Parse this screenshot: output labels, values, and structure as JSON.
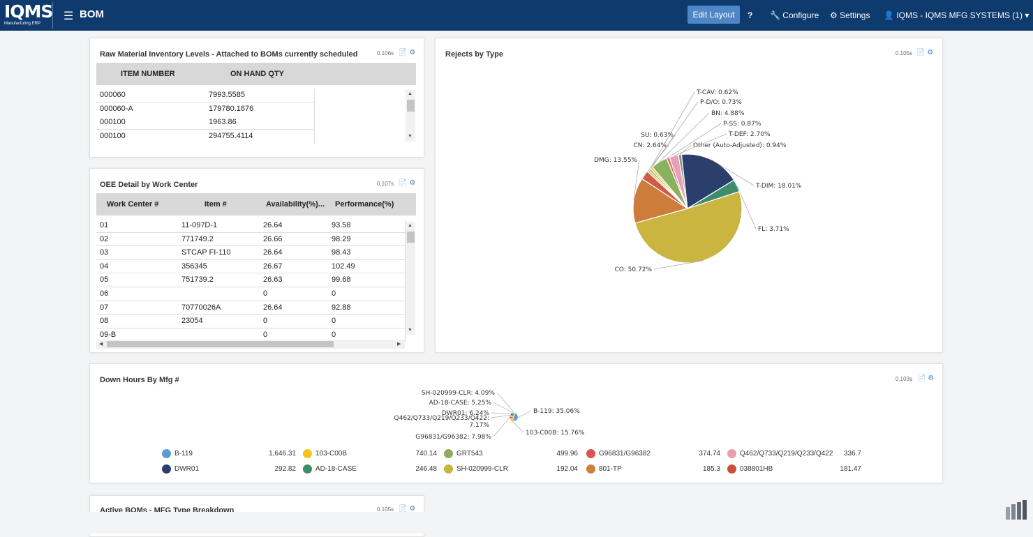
{
  "header": {
    "logo_main": "IQMS",
    "logo_sub": "Manufacturing ERP",
    "menu_icon": "hamburger-icon",
    "title": "BOM",
    "edit_layout": "Edit Layout",
    "help": "?",
    "configure": "Configure",
    "settings": "Settings",
    "user": "IQMS - IQMS MFG SYSTEMS (1)"
  },
  "raw_material": {
    "title": "Raw Material Inventory Levels - Attached to BOMs currently scheduled",
    "time": "0.106s",
    "columns": [
      "ITEM NUMBER",
      "ON HAND QTY"
    ],
    "rows": [
      [
        "000060",
        "7993.5585"
      ],
      [
        "000060-A",
        "179780.1676"
      ],
      [
        "000100",
        "1963.86"
      ],
      [
        "000100",
        "294755.4114"
      ]
    ]
  },
  "oee": {
    "title": "OEE Detail by Work Center",
    "time": "0.107s",
    "columns": [
      "Work Center #",
      "Item #",
      "Availability(%)...",
      "Performance(%)"
    ],
    "rows": [
      [
        "01",
        "11-097D-1",
        "26.64",
        "93.58"
      ],
      [
        "02",
        "771749.2",
        "26.66",
        "98.29"
      ],
      [
        "03",
        "STCAP FI-110",
        "26.64",
        "98.43"
      ],
      [
        "04",
        "356345",
        "26.67",
        "102.49"
      ],
      [
        "05",
        "751739.2",
        "26.63",
        "99.68"
      ],
      [
        "06",
        "",
        "0",
        "0"
      ],
      [
        "07",
        "70770026A",
        "26.64",
        "92.88"
      ],
      [
        "08",
        "23054",
        "0",
        "0"
      ],
      [
        "09-B",
        "",
        "0",
        "0"
      ]
    ]
  },
  "rejects": {
    "title": "Rejects by Type",
    "time": "0.105s"
  },
  "down_hours": {
    "title": "Down Hours By Mfg #",
    "time": "0.103s"
  },
  "active_boms": {
    "title": "Active BOMs - MFG Type Breakdown",
    "time": "0.105s"
  },
  "chart_data": [
    {
      "type": "pie",
      "title": "Rejects by Type",
      "labels": [
        "T-DIM",
        "FL",
        "CO",
        "DMG",
        "CN",
        "SU",
        "T-CAV",
        "P-D/O",
        "BN",
        "P-SS",
        "T-DEF",
        "Other (Auto-Adjusted)"
      ],
      "values": [
        18.01,
        3.71,
        50.72,
        13.55,
        2.64,
        0.63,
        0.62,
        0.73,
        4.88,
        0.87,
        2.7,
        0.94
      ],
      "display": [
        "T-DIM: 18.01%",
        "FL: 3.71%",
        "CO: 50.72%",
        "DMG: 13.55%",
        "CN: 2.64%",
        "SU: 0.63%",
        "T-CAV: 0.62%",
        "P-D/O: 0.73%",
        "BN: 4.88%",
        "P-SS: 0.87%",
        "T-DEF: 2.70%",
        "Other (Auto-Adjusted): 0.94%"
      ],
      "colors": [
        "#2b3f6c",
        "#3e8d6a",
        "#c9b53f",
        "#cc7d3a",
        "#cf5b48",
        "#d6c23c",
        "#8bb362",
        "#e7c94b",
        "#8ab15d",
        "#e07070",
        "#e6a1b4",
        "#8a8a8a"
      ]
    },
    {
      "type": "pie",
      "title": "Down Hours By Mfg #",
      "labels": [
        "B-119",
        "103-C00B",
        "G96831/G96382",
        "Q462/Q733/Q219/Q233/Q422",
        "DWR01",
        "AD-18-CASE",
        "SH-020999-CLR"
      ],
      "values": [
        35.06,
        15.76,
        7.98,
        7.17,
        6.24,
        5.25,
        4.09
      ],
      "display": [
        "B-119: 35.06%",
        "103-C00B: 15.76%",
        "G96831/G96382: 7.98%",
        "Q462/Q733/Q219/Q233/Q422:",
        "DWR01: 6.24%",
        "AD-18-CASE: 5.25%",
        "SH-020999-CLR: 4.09%"
      ],
      "display_extra": "7.17%",
      "legend": [
        {
          "name": "B-119",
          "value": "1,646.31",
          "color": "#5b9bd5"
        },
        {
          "name": "103-C00B",
          "value": "740.14",
          "color": "#f3c419"
        },
        {
          "name": "GRT543",
          "value": "499.96",
          "color": "#8cae5a"
        },
        {
          "name": "G96831/G96382",
          "value": "374.74",
          "color": "#d9534f"
        },
        {
          "name": "Q462/Q733/Q219/Q233/Q422",
          "value": "336.7",
          "color": "#e6a0ab"
        },
        {
          "name": "DWR01",
          "value": "292.82",
          "color": "#2b3f6c"
        },
        {
          "name": "AD-18-CASE",
          "value": "246.48",
          "color": "#3e8d6a"
        },
        {
          "name": "SH-020999-CLR",
          "value": "192.04",
          "color": "#c9b53f"
        },
        {
          "name": "801-TP",
          "value": "185.3",
          "color": "#cc8040"
        },
        {
          "name": "038801HB",
          "value": "181.47",
          "color": "#cf4d3a"
        }
      ]
    }
  ]
}
